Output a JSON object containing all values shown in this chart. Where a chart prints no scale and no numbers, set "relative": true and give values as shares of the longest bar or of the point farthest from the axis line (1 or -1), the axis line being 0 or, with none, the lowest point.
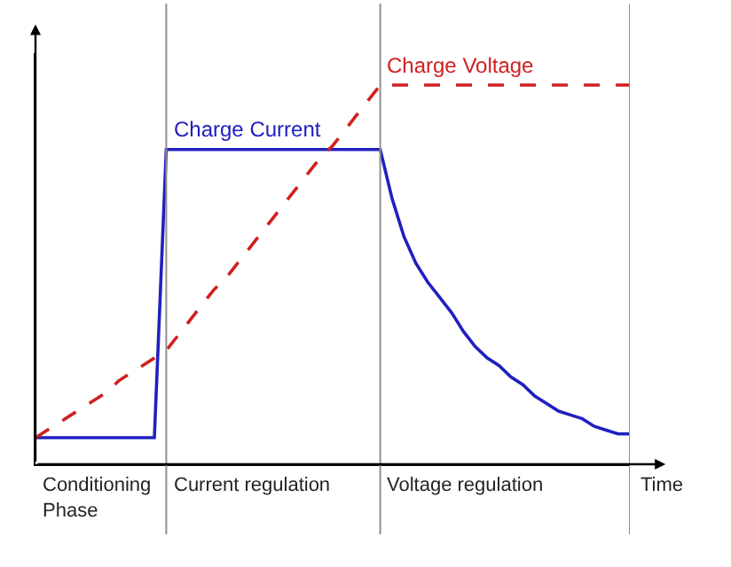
{
  "chart_data": {
    "type": "line",
    "relative": true,
    "xlabel": "Time",
    "grid": false,
    "legend": false,
    "marker": "none",
    "categories": [
      null,
      null,
      null,
      null,
      null,
      null,
      null,
      null,
      null,
      null,
      null,
      null,
      null,
      null,
      null,
      null,
      null,
      null,
      null,
      null,
      null,
      null,
      null,
      null,
      null,
      null,
      null,
      null,
      null,
      null,
      null,
      null,
      null,
      null,
      null,
      null,
      null,
      null,
      null,
      null,
      null,
      null,
      null,
      null,
      null,
      null,
      null,
      null,
      null,
      null,
      null
    ],
    "series": [
      {
        "name": "Charge Current",
        "color": "#2020c0",
        "line_style": "solid",
        "values": [
          0.07,
          0.07,
          0.07,
          0.07,
          0.07,
          0.07,
          0.07,
          0.07,
          0.07,
          0.07,
          0.07,
          0.83,
          0.83,
          0.83,
          0.83,
          0.83,
          0.83,
          0.83,
          0.83,
          0.83,
          0.83,
          0.83,
          0.83,
          0.83,
          0.83,
          0.83,
          0.83,
          0.83,
          0.83,
          0.83,
          0.7,
          0.6,
          0.53,
          0.48,
          0.44,
          0.4,
          0.35,
          0.31,
          0.28,
          0.26,
          0.23,
          0.21,
          0.18,
          0.16,
          0.14,
          0.13,
          0.12,
          0.1,
          0.09,
          0.08,
          0.08
        ]
      },
      {
        "name": "Charge Voltage",
        "color": "#d02020",
        "line_style": "dashed",
        "values": [
          0.07,
          0.09,
          0.11,
          0.13,
          0.15,
          0.17,
          0.19,
          0.22,
          0.24,
          0.26,
          0.28,
          0.3,
          0.34,
          0.38,
          0.42,
          0.46,
          0.49,
          0.53,
          0.57,
          0.61,
          0.65,
          0.69,
          0.73,
          0.77,
          0.81,
          0.84,
          0.88,
          0.92,
          0.96,
          1,
          1,
          1,
          1,
          1,
          1,
          1,
          1,
          1,
          1,
          1,
          1,
          1,
          1,
          1,
          1,
          1,
          1,
          1,
          1,
          1,
          1
        ]
      }
    ],
    "annotations": [
      "Conditioning Phase",
      "Current regulation",
      "Voltage regulation"
    ]
  }
}
